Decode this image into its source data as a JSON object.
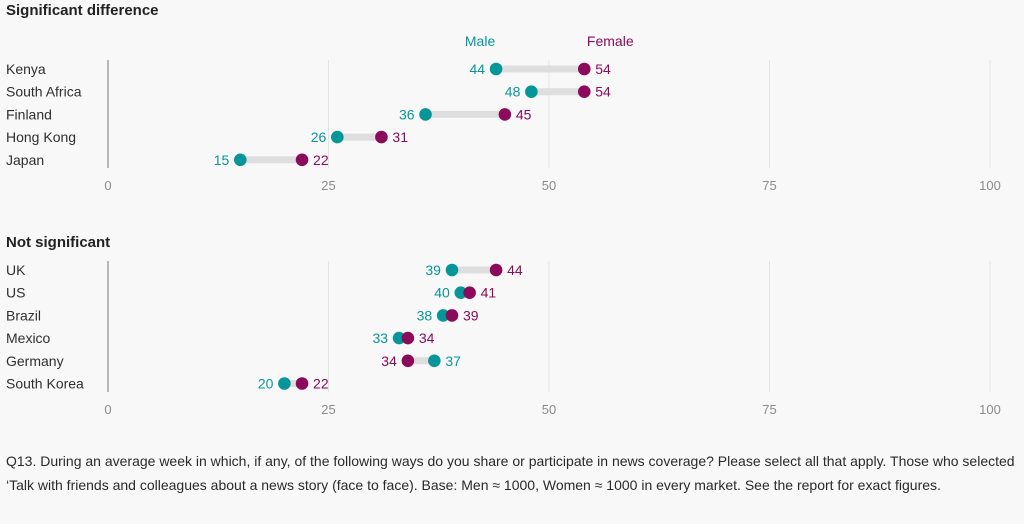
{
  "chart_data": [
    {
      "type": "dot",
      "title": "Significant difference",
      "categories": [
        "Kenya",
        "South Africa",
        "Finland",
        "Hong Kong",
        "Japan"
      ],
      "series": [
        {
          "name": "Male",
          "values": [
            44,
            48,
            36,
            26,
            15
          ]
        },
        {
          "name": "Female",
          "values": [
            54,
            54,
            45,
            31,
            22
          ]
        }
      ],
      "xlim": [
        0,
        100
      ],
      "xticks": [
        0,
        25,
        50,
        75,
        100
      ],
      "grid": true,
      "legend": "top"
    },
    {
      "type": "dot",
      "title": "Not significant",
      "categories": [
        "UK",
        "US",
        "Brazil",
        "Mexico",
        "Germany",
        "South Korea"
      ],
      "series": [
        {
          "name": "Male",
          "values": [
            39,
            40,
            38,
            33,
            37,
            20
          ]
        },
        {
          "name": "Female",
          "values": [
            44,
            41,
            39,
            34,
            34,
            22
          ]
        }
      ],
      "xlim": [
        0,
        100
      ],
      "xticks": [
        0,
        25,
        50,
        75,
        100
      ],
      "grid": true,
      "legend": "none"
    }
  ],
  "colors": {
    "male": "#06969a",
    "female": "#8c0a5c",
    "connector": "#dedede",
    "grid": "#e4e4e4"
  },
  "footnote": "Q13. During an average week in which, if any, of the following ways do you share or participate in news coverage? Please select all that apply. Those who selected ‘Talk with friends and colleagues about a news story (face to face). Base: Men ≈ 1000, Women ≈ 1000 in every market. See the report for exact figures."
}
